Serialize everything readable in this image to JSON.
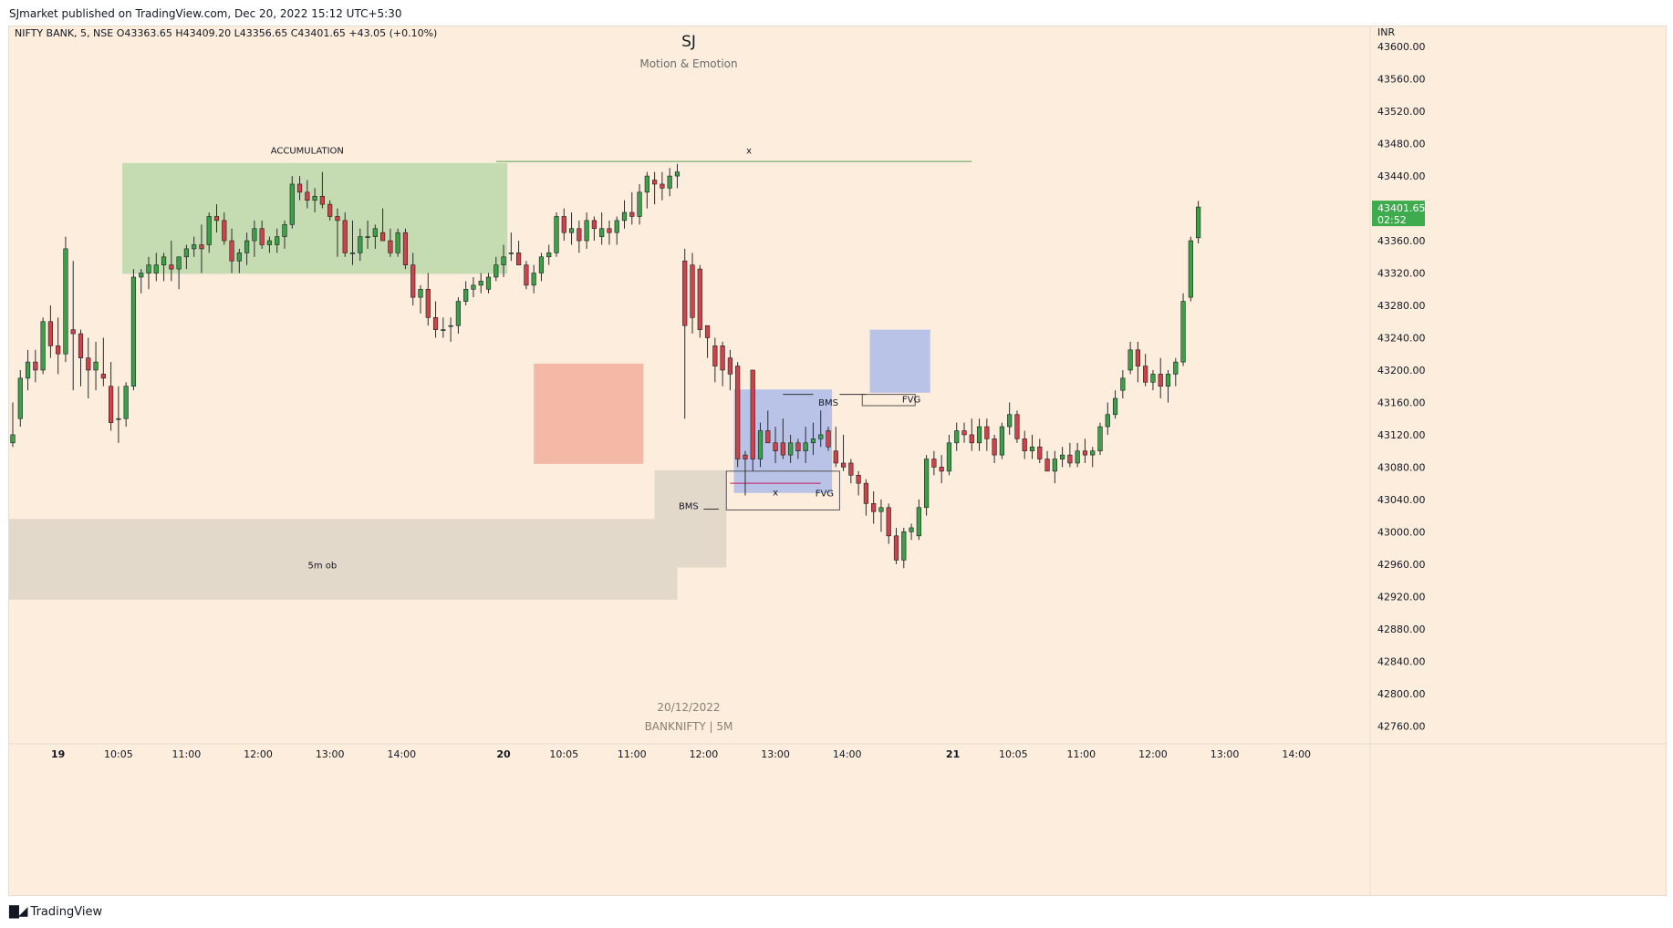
{
  "header": {
    "published_line": "SJmarket published on TradingView.com, Dec 20, 2022 15:12 UTC+5:30"
  },
  "footer": {
    "logo_icon": "tradingview-logo-icon",
    "brand": "TradingView"
  },
  "colors": {
    "background": "#fceddd",
    "bull": "#3c9f4a",
    "bear": "#d0424b",
    "wick": "#2b2b2b",
    "accumulation_zone": "#c5dcb3",
    "supply_zone": "#f4b8a6",
    "ob_zone": "#e3d9cb",
    "blue_zone": "#b9c3e8",
    "price_badge": "#3eab4f",
    "level_line": "#5ea152",
    "fvg_line": "#c2185b"
  },
  "chart_data": {
    "type": "candlestick",
    "title": "SJ",
    "subtitle": "Motion & Emotion",
    "symbol_line": "NIFTY BANK, 5, NSE  O43363.65  H43409.20  L43356.65  C43401.65  +43.05 (+0.10%)",
    "currency": "INR",
    "last_price": "43401.65",
    "countdown": "02:52",
    "watermark_date": "20/12/2022",
    "watermark_symbol": "BANKNIFTY | 5M",
    "ylim": [
      42740,
      43625
    ],
    "xlim": [
      0,
      180
    ],
    "y_ticks": [
      "43600.00",
      "43560.00",
      "43520.00",
      "43480.00",
      "43440.00",
      "43400.00",
      "43360.00",
      "43320.00",
      "43280.00",
      "43240.00",
      "43200.00",
      "43160.00",
      "43120.00",
      "43080.00",
      "43040.00",
      "43000.00",
      "42960.00",
      "42920.00",
      "42880.00",
      "42840.00",
      "42800.00",
      "42760.00"
    ],
    "x_ticks": [
      {
        "i": 6,
        "label": "19",
        "bold": true
      },
      {
        "i": 14,
        "label": "10:05"
      },
      {
        "i": 23,
        "label": "11:00"
      },
      {
        "i": 32.5,
        "label": "12:00"
      },
      {
        "i": 42,
        "label": "13:00"
      },
      {
        "i": 51.5,
        "label": "14:00"
      },
      {
        "i": 65,
        "label": "20",
        "bold": true
      },
      {
        "i": 73,
        "label": "10:05"
      },
      {
        "i": 82,
        "label": "11:00"
      },
      {
        "i": 91.5,
        "label": "12:00"
      },
      {
        "i": 101,
        "label": "13:00"
      },
      {
        "i": 110.5,
        "label": "14:00"
      },
      {
        "i": 124.5,
        "label": "21",
        "bold": true
      },
      {
        "i": 132.5,
        "label": "10:05"
      },
      {
        "i": 141.5,
        "label": "11:00"
      },
      {
        "i": 151,
        "label": "12:00"
      },
      {
        "i": 160.5,
        "label": "13:00"
      },
      {
        "i": 170,
        "label": "14:00"
      }
    ],
    "candles": [
      [
        43110,
        43160,
        43105,
        43120
      ],
      [
        43140,
        43200,
        43130,
        43190
      ],
      [
        43190,
        43225,
        43175,
        43210
      ],
      [
        43210,
        43225,
        43185,
        43200
      ],
      [
        43200,
        43265,
        43195,
        43260
      ],
      [
        43260,
        43280,
        43215,
        43230
      ],
      [
        43230,
        43265,
        43195,
        43220
      ],
      [
        43220,
        43365,
        43210,
        43350
      ],
      [
        43250,
        43335,
        43175,
        43245
      ],
      [
        43245,
        43250,
        43180,
        43215
      ],
      [
        43215,
        43240,
        43165,
        43200
      ],
      [
        43200,
        43235,
        43175,
        43210
      ],
      [
        43195,
        43240,
        43180,
        43190
      ],
      [
        43180,
        43210,
        43125,
        43135
      ],
      [
        43140,
        43180,
        43110,
        43140
      ],
      [
        43140,
        43185,
        43130,
        43180
      ],
      [
        43180,
        43325,
        43175,
        43315
      ],
      [
        43315,
        43325,
        43295,
        43320
      ],
      [
        43320,
        43340,
        43300,
        43330
      ],
      [
        43320,
        43345,
        43310,
        43330
      ],
      [
        43330,
        43345,
        43310,
        43340
      ],
      [
        43330,
        43360,
        43310,
        43325
      ],
      [
        43325,
        43340,
        43300,
        43340
      ],
      [
        43340,
        43355,
        43325,
        43350
      ],
      [
        43350,
        43365,
        43340,
        43355
      ],
      [
        43355,
        43380,
        43320,
        43350
      ],
      [
        43355,
        43395,
        43345,
        43390
      ],
      [
        43390,
        43405,
        43370,
        43385
      ],
      [
        43385,
        43395,
        43355,
        43360
      ],
      [
        43360,
        43375,
        43320,
        43335
      ],
      [
        43335,
        43350,
        43320,
        43345
      ],
      [
        43345,
        43370,
        43330,
        43360
      ],
      [
        43360,
        43385,
        43340,
        43375
      ],
      [
        43375,
        43385,
        43350,
        43355
      ],
      [
        43355,
        43365,
        43345,
        43360
      ],
      [
        43355,
        43375,
        43345,
        43365
      ],
      [
        43365,
        43385,
        43350,
        43380
      ],
      [
        43380,
        43440,
        43375,
        43430
      ],
      [
        43430,
        43440,
        43410,
        43420
      ],
      [
        43420,
        43435,
        43400,
        43410
      ],
      [
        43410,
        43425,
        43395,
        43415
      ],
      [
        43415,
        43445,
        43400,
        43405
      ],
      [
        43405,
        43410,
        43385,
        43390
      ],
      [
        43390,
        43400,
        43340,
        43385
      ],
      [
        43385,
        43395,
        43340,
        43345
      ],
      [
        43345,
        43385,
        43330,
        43345
      ],
      [
        43345,
        43375,
        43335,
        43365
      ],
      [
        43365,
        43385,
        43350,
        43365
      ],
      [
        43365,
        43380,
        43350,
        43375
      ],
      [
        43370,
        43400,
        43360,
        43360
      ],
      [
        43360,
        43375,
        43340,
        43345
      ],
      [
        43345,
        43375,
        43340,
        43370
      ],
      [
        43370,
        43375,
        43325,
        43330
      ],
      [
        43330,
        43345,
        43280,
        43290
      ],
      [
        43290,
        43305,
        43270,
        43300
      ],
      [
        43300,
        43320,
        43255,
        43265
      ],
      [
        43265,
        43285,
        43240,
        43250
      ],
      [
        43250,
        43265,
        43240,
        43250
      ],
      [
        43255,
        43265,
        43235,
        43255
      ],
      [
        43255,
        43290,
        43245,
        43285
      ],
      [
        43285,
        43310,
        43280,
        43300
      ],
      [
        43300,
        43315,
        43290,
        43305
      ],
      [
        43305,
        43320,
        43295,
        43310
      ],
      [
        43300,
        43320,
        43295,
        43315
      ],
      [
        43315,
        43340,
        43310,
        43330
      ],
      [
        43330,
        43355,
        43315,
        43340
      ],
      [
        43345,
        43370,
        43335,
        43345
      ],
      [
        43345,
        43360,
        43330,
        43330
      ],
      [
        43330,
        43335,
        43300,
        43305
      ],
      [
        43305,
        43330,
        43295,
        43320
      ],
      [
        43320,
        43345,
        43310,
        43340
      ],
      [
        43340,
        43355,
        43330,
        43345
      ],
      [
        43345,
        43395,
        43340,
        43390
      ],
      [
        43390,
        43400,
        43360,
        43370
      ],
      [
        43370,
        43395,
        43355,
        43375
      ],
      [
        43375,
        43385,
        43345,
        43360
      ],
      [
        43360,
        43395,
        43350,
        43385
      ],
      [
        43385,
        43390,
        43360,
        43375
      ],
      [
        43365,
        43395,
        43355,
        43375
      ],
      [
        43375,
        43385,
        43355,
        43370
      ],
      [
        43370,
        43390,
        43355,
        43385
      ],
      [
        43385,
        43410,
        43375,
        43395
      ],
      [
        43395,
        43420,
        43380,
        43390
      ],
      [
        43390,
        43430,
        43380,
        43420
      ],
      [
        43420,
        43445,
        43400,
        43440
      ],
      [
        43435,
        43445,
        43405,
        43430
      ],
      [
        43430,
        43445,
        43410,
        43425
      ],
      [
        43425,
        43450,
        43415,
        43440
      ],
      [
        43440,
        43455,
        43425,
        43445
      ],
      [
        43335,
        43350,
        43140,
        43255
      ],
      [
        43330,
        43345,
        43245,
        43265
      ],
      [
        43325,
        43330,
        43240,
        43250
      ],
      [
        43255,
        43255,
        43215,
        43240
      ],
      [
        43230,
        43240,
        43185,
        43205
      ],
      [
        43230,
        43235,
        43180,
        43200
      ],
      [
        43215,
        43225,
        43175,
        43195
      ],
      [
        43205,
        43210,
        43080,
        43090
      ],
      [
        43095,
        43100,
        43045,
        43090
      ],
      [
        43200,
        43200,
        43075,
        43090
      ],
      [
        43090,
        43135,
        43080,
        43125
      ],
      [
        43125,
        43150,
        43110,
        43110
      ],
      [
        43110,
        43130,
        43085,
        43100
      ],
      [
        43110,
        43140,
        43090,
        43095
      ],
      [
        43095,
        43120,
        43085,
        43110
      ],
      [
        43110,
        43115,
        43090,
        43100
      ],
      [
        43100,
        43130,
        43085,
        43110
      ],
      [
        43110,
        43135,
        43095,
        43115
      ],
      [
        43115,
        43150,
        43105,
        43120
      ],
      [
        43125,
        43130,
        43100,
        43105
      ],
      [
        43100,
        43130,
        43080,
        43085
      ],
      [
        43085,
        43120,
        43075,
        43080
      ],
      [
        43085,
        43090,
        43060,
        43070
      ],
      [
        43070,
        43075,
        43045,
        43060
      ],
      [
        43060,
        43065,
        43020,
        43035
      ],
      [
        43035,
        43050,
        43010,
        43025
      ],
      [
        43025,
        43040,
        43000,
        43030
      ],
      [
        43030,
        43035,
        42985,
        42995
      ],
      [
        42995,
        43005,
        42960,
        42965
      ],
      [
        42965,
        43005,
        42955,
        43000
      ],
      [
        43000,
        43010,
        42990,
        43005
      ],
      [
        42995,
        43040,
        42990,
        43030
      ],
      [
        43030,
        43095,
        43020,
        43090
      ],
      [
        43090,
        43100,
        43070,
        43080
      ],
      [
        43080,
        43095,
        43060,
        43075
      ],
      [
        43075,
        43120,
        43070,
        43110
      ],
      [
        43110,
        43135,
        43100,
        43125
      ],
      [
        43125,
        43135,
        43110,
        43120
      ],
      [
        43120,
        43140,
        43100,
        43110
      ],
      [
        43110,
        43140,
        43100,
        43130
      ],
      [
        43130,
        43140,
        43100,
        43115
      ],
      [
        43115,
        43120,
        43085,
        43095
      ],
      [
        43095,
        43135,
        43090,
        43130
      ],
      [
        43130,
        43160,
        43120,
        43145
      ],
      [
        43145,
        43150,
        43110,
        43115
      ],
      [
        43115,
        43125,
        43090,
        43100
      ],
      [
        43100,
        43120,
        43090,
        43105
      ],
      [
        43105,
        43115,
        43085,
        43090
      ],
      [
        43090,
        43100,
        43075,
        43075
      ],
      [
        43075,
        43100,
        43060,
        43090
      ],
      [
        43090,
        43105,
        43080,
        43095
      ],
      [
        43095,
        43110,
        43080,
        43085
      ],
      [
        43085,
        43110,
        43080,
        43100
      ],
      [
        43100,
        43115,
        43085,
        43095
      ],
      [
        43095,
        43105,
        43080,
        43100
      ],
      [
        43100,
        43135,
        43095,
        43130
      ],
      [
        43130,
        43160,
        43120,
        43145
      ],
      [
        43145,
        43175,
        43140,
        43165
      ],
      [
        43175,
        43200,
        43165,
        43190
      ],
      [
        43200,
        43235,
        43195,
        43225
      ],
      [
        43225,
        43235,
        43185,
        43205
      ],
      [
        43205,
        43220,
        43180,
        43185
      ],
      [
        43185,
        43200,
        43175,
        43195
      ],
      [
        43195,
        43215,
        43165,
        43180
      ],
      [
        43180,
        43200,
        43160,
        43195
      ],
      [
        43195,
        43215,
        43180,
        43210
      ],
      [
        43210,
        43295,
        43205,
        43285
      ],
      [
        43290,
        43365,
        43285,
        43360
      ],
      [
        43363.65,
        43409.2,
        43356.65,
        43401.65
      ]
    ],
    "annotations": [
      {
        "label": "ACCUMULATION",
        "x": 39,
        "y": 43468
      },
      {
        "label": "x",
        "x": 97.5,
        "y": 43468
      },
      {
        "label": "5m ob",
        "x": 41,
        "y": 42955
      },
      {
        "label": "BMS",
        "x": 89.5,
        "y": 43028
      },
      {
        "label": "BMS",
        "x": 108,
        "y": 43156
      },
      {
        "label": "x",
        "x": 101,
        "y": 43045
      },
      {
        "label": "FVG",
        "x": 107.5,
        "y": 43044
      },
      {
        "label": "FVG",
        "x": 119,
        "y": 43160
      }
    ],
    "zones": [
      {
        "name": "accumulation-zone",
        "x0": 14.5,
        "x1": 65.5,
        "y0": 43319,
        "y1": 43456,
        "color": "accumulation_zone"
      },
      {
        "name": "supply-zone",
        "x0": 69,
        "x1": 83.5,
        "y0": 43084,
        "y1": 43208,
        "color": "supply_zone"
      },
      {
        "name": "ob-zone-5m",
        "x0": 0,
        "x1": 88,
        "y0": 42916,
        "y1": 43016,
        "color": "ob_zone"
      },
      {
        "name": "ob-zone-small",
        "x0": 85,
        "x1": 94.5,
        "y0": 42956,
        "y1": 43076,
        "color": "ob_zone"
      },
      {
        "name": "blue-zone-1",
        "x0": 95.5,
        "x1": 108.5,
        "y0": 43048,
        "y1": 43176,
        "color": "blue_zone"
      },
      {
        "name": "blue-zone-2",
        "x0": 113.5,
        "x1": 121.5,
        "y0": 43172,
        "y1": 43250,
        "color": "blue_zone"
      }
    ]
  }
}
